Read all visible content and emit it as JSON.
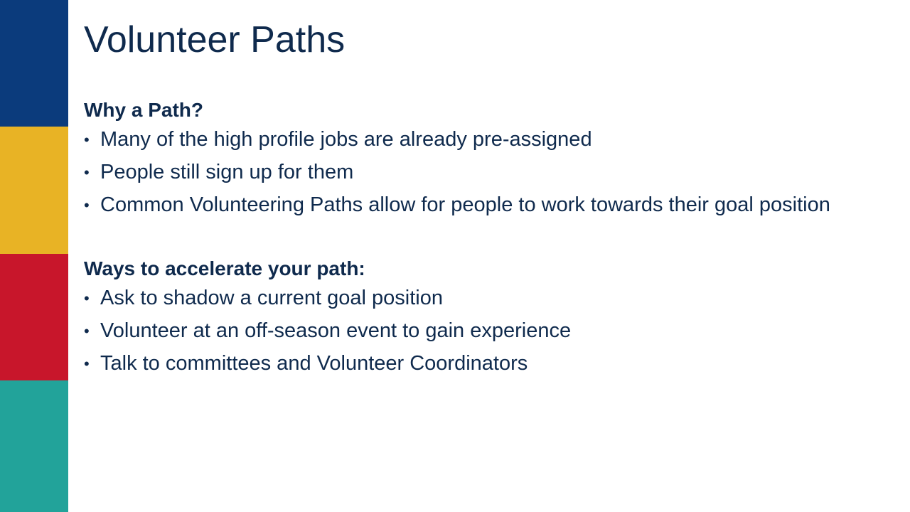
{
  "slide": {
    "title": "Volunteer Paths",
    "sections": [
      {
        "heading": "Why a Path?",
        "bullets": [
          "Many of the high profile jobs are already pre-assigned",
          "People still sign up for them",
          "Common Volunteering Paths allow for people to work towards their goal position"
        ]
      },
      {
        "heading": "Ways to accelerate your path:",
        "bullets": [
          "Ask to shadow a current goal position",
          "Volunteer at an off-season event to gain experience",
          "Talk to committees and Volunteer Coordinators"
        ]
      }
    ],
    "bullet_glyph": "•",
    "colors": {
      "text": "#0f2a4d",
      "stripe_blue": "#0b3b7c",
      "stripe_yellow": "#e8b325",
      "stripe_red": "#c8162b",
      "stripe_teal": "#22a39a"
    }
  }
}
